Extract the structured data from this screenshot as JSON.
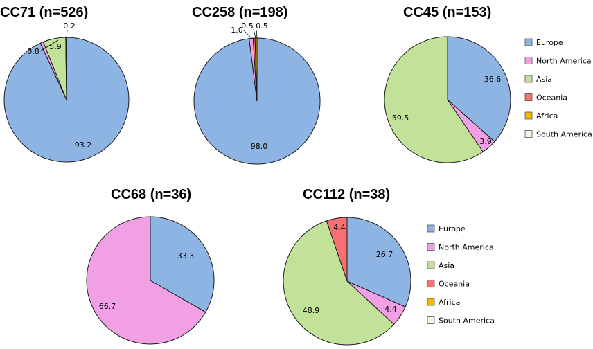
{
  "colors": {
    "Europe": "#8eb4e3",
    "North America": "#f2a0e6",
    "Asia": "#c2e29a",
    "Oceania": "#f77171",
    "Africa": "#f5b800",
    "South America": "#f3f7df"
  },
  "legend": [
    "Europe",
    "North America",
    "Asia",
    "Oceania",
    "Africa",
    "South America"
  ],
  "chart_data": [
    {
      "type": "pie",
      "title": "CC71 (n=526)",
      "slices": [
        {
          "label": "Europe",
          "value": 93.2,
          "text": "93.2"
        },
        {
          "label": "North America",
          "value": 0.8,
          "text": "0.8"
        },
        {
          "label": "Asia",
          "value": 5.9,
          "text": "5.9"
        },
        {
          "label": "Oceania",
          "value": 0.2,
          "text": "0.2"
        }
      ]
    },
    {
      "type": "pie",
      "title": "CC258 (n=198)",
      "slices": [
        {
          "label": "Europe",
          "value": 98.0,
          "text": "98.0"
        },
        {
          "label": "North America",
          "value": 1.0,
          "text": "1.0"
        },
        {
          "label": "Oceania",
          "value": 0.5,
          "text": "0.5"
        },
        {
          "label": "Africa",
          "value": 0.5,
          "text": "0.5"
        }
      ]
    },
    {
      "type": "pie",
      "title": "CC45 (n=153)",
      "slices": [
        {
          "label": "Europe",
          "value": 36.6,
          "text": "36.6"
        },
        {
          "label": "North America",
          "value": 3.9,
          "text": "3.9"
        },
        {
          "label": "Asia",
          "value": 59.5,
          "text": "59.5"
        }
      ]
    },
    {
      "type": "pie",
      "title": "CC68 (n=36)",
      "slices": [
        {
          "label": "Europe",
          "value": 33.3,
          "text": "33.3"
        },
        {
          "label": "North America",
          "value": 66.7,
          "text": "66.7"
        }
      ]
    },
    {
      "type": "pie",
      "title": "CC112 (n=38)",
      "slices": [
        {
          "label": "Europe",
          "value": 26.7,
          "text": "26.7"
        },
        {
          "label": "North America",
          "value": 4.4,
          "text": "4.4"
        },
        {
          "label": "Asia",
          "value": 48.9,
          "text": "48.9"
        },
        {
          "label": "Oceania",
          "value": 4.4,
          "text": "4.4"
        }
      ]
    }
  ]
}
